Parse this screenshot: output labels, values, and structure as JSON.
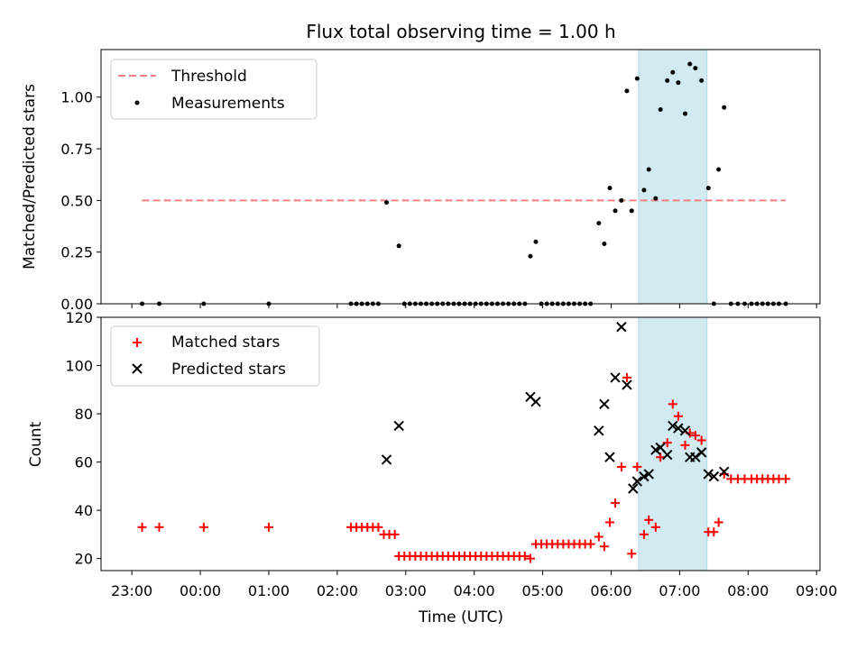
{
  "figure": {
    "title": "Flux total observing time = 1.00 h",
    "shaded_span_colour": "#add8e6",
    "x_tick_labels": [
      "23:00",
      "00:00",
      "01:00",
      "02:00",
      "03:00",
      "04:00",
      "05:00",
      "06:00",
      "07:00",
      "08:00",
      "09:00"
    ]
  },
  "chart_data": [
    {
      "type": "scatter",
      "title": "Flux total observing time = 1.00 h",
      "xlabel": "",
      "ylabel": "Matched/Predicted stars",
      "x_unit": "hours relative to 00:00 UTC",
      "xlim": [
        -1.45,
        9.05
      ],
      "ylim": [
        0,
        1.23
      ],
      "yticks": [
        0.0,
        0.25,
        0.5,
        0.75,
        1.0
      ],
      "ytick_labels": [
        "0.00",
        "0.25",
        "0.50",
        "0.75",
        "1.00"
      ],
      "shaded_span": [
        6.4,
        7.4
      ],
      "threshold": {
        "name": "Threshold",
        "y": 0.5,
        "x_range": [
          -0.85,
          8.55
        ],
        "color": "#f08080",
        "style": "dashed"
      },
      "series": [
        {
          "name": "Measurements",
          "marker": "dot",
          "color": "#000000",
          "points": [
            [
              -0.85,
              0
            ],
            [
              -0.6,
              0
            ],
            [
              0.05,
              0
            ],
            [
              1.0,
              0
            ],
            [
              2.2,
              0
            ],
            [
              2.28,
              0
            ],
            [
              2.36,
              0
            ],
            [
              2.44,
              0
            ],
            [
              2.52,
              0
            ],
            [
              2.6,
              0
            ],
            [
              2.72,
              0.49
            ],
            [
              2.9,
              0.28
            ],
            [
              2.98,
              0
            ],
            [
              3.06,
              0
            ],
            [
              3.14,
              0
            ],
            [
              3.22,
              0
            ],
            [
              3.3,
              0
            ],
            [
              3.38,
              0
            ],
            [
              3.46,
              0
            ],
            [
              3.54,
              0
            ],
            [
              3.62,
              0
            ],
            [
              3.7,
              0
            ],
            [
              3.78,
              0
            ],
            [
              3.86,
              0
            ],
            [
              3.94,
              0
            ],
            [
              4.02,
              0
            ],
            [
              4.1,
              0
            ],
            [
              4.18,
              0
            ],
            [
              4.26,
              0
            ],
            [
              4.34,
              0
            ],
            [
              4.42,
              0
            ],
            [
              4.5,
              0
            ],
            [
              4.58,
              0
            ],
            [
              4.66,
              0
            ],
            [
              4.74,
              0
            ],
            [
              4.82,
              0.23
            ],
            [
              4.9,
              0.3
            ],
            [
              4.98,
              0
            ],
            [
              5.06,
              0
            ],
            [
              5.14,
              0
            ],
            [
              5.22,
              0
            ],
            [
              5.3,
              0
            ],
            [
              5.38,
              0
            ],
            [
              5.46,
              0
            ],
            [
              5.54,
              0
            ],
            [
              5.62,
              0
            ],
            [
              5.7,
              0
            ],
            [
              5.82,
              0.39
            ],
            [
              5.9,
              0.29
            ],
            [
              5.98,
              0.56
            ],
            [
              6.06,
              0.45
            ],
            [
              6.15,
              0.5
            ],
            [
              6.23,
              1.03
            ],
            [
              6.3,
              0.45
            ],
            [
              6.38,
              1.09
            ],
            [
              6.48,
              0.55
            ],
            [
              6.55,
              0.65
            ],
            [
              6.65,
              0.51
            ],
            [
              6.72,
              0.94
            ],
            [
              6.82,
              1.08
            ],
            [
              6.9,
              1.12
            ],
            [
              6.98,
              1.07
            ],
            [
              7.08,
              0.92
            ],
            [
              7.15,
              1.16
            ],
            [
              7.23,
              1.14
            ],
            [
              7.32,
              1.08
            ],
            [
              7.42,
              0.56
            ],
            [
              7.5,
              0
            ],
            [
              7.57,
              0.65
            ],
            [
              7.65,
              0.95
            ],
            [
              7.75,
              0
            ],
            [
              7.85,
              0
            ],
            [
              7.95,
              0
            ],
            [
              8.05,
              0
            ],
            [
              8.13,
              0
            ],
            [
              8.21,
              0
            ],
            [
              8.29,
              0
            ],
            [
              8.37,
              0
            ],
            [
              8.45,
              0
            ],
            [
              8.55,
              0
            ]
          ]
        }
      ],
      "legend": {
        "position": "upper-left",
        "entries": [
          "Threshold",
          "Measurements"
        ]
      }
    },
    {
      "type": "scatter",
      "xlabel": "Time (UTC)",
      "ylabel": "Count",
      "x_unit": "hours relative to 00:00 UTC",
      "xlim": [
        -1.45,
        9.05
      ],
      "ylim": [
        15,
        120
      ],
      "yticks": [
        20,
        40,
        60,
        80,
        100,
        120
      ],
      "ytick_labels": [
        "20",
        "40",
        "60",
        "80",
        "100",
        "120"
      ],
      "shaded_span": [
        6.4,
        7.4
      ],
      "series": [
        {
          "name": "Matched stars",
          "marker": "plus",
          "color": "#ff0000",
          "points": [
            [
              -0.85,
              33
            ],
            [
              -0.6,
              33
            ],
            [
              0.05,
              33
            ],
            [
              1.0,
              33
            ],
            [
              2.2,
              33
            ],
            [
              2.28,
              33
            ],
            [
              2.36,
              33
            ],
            [
              2.44,
              33
            ],
            [
              2.52,
              33
            ],
            [
              2.6,
              33
            ],
            [
              2.68,
              30
            ],
            [
              2.76,
              30
            ],
            [
              2.84,
              30
            ],
            [
              2.9,
              21
            ],
            [
              2.98,
              21
            ],
            [
              3.06,
              21
            ],
            [
              3.14,
              21
            ],
            [
              3.22,
              21
            ],
            [
              3.3,
              21
            ],
            [
              3.38,
              21
            ],
            [
              3.46,
              21
            ],
            [
              3.54,
              21
            ],
            [
              3.62,
              21
            ],
            [
              3.7,
              21
            ],
            [
              3.78,
              21
            ],
            [
              3.86,
              21
            ],
            [
              3.94,
              21
            ],
            [
              4.02,
              21
            ],
            [
              4.1,
              21
            ],
            [
              4.18,
              21
            ],
            [
              4.26,
              21
            ],
            [
              4.34,
              21
            ],
            [
              4.42,
              21
            ],
            [
              4.5,
              21
            ],
            [
              4.58,
              21
            ],
            [
              4.66,
              21
            ],
            [
              4.74,
              21
            ],
            [
              4.82,
              20
            ],
            [
              4.9,
              26
            ],
            [
              4.98,
              26
            ],
            [
              5.06,
              26
            ],
            [
              5.14,
              26
            ],
            [
              5.22,
              26
            ],
            [
              5.3,
              26
            ],
            [
              5.38,
              26
            ],
            [
              5.46,
              26
            ],
            [
              5.54,
              26
            ],
            [
              5.62,
              26
            ],
            [
              5.7,
              26
            ],
            [
              5.82,
              29
            ],
            [
              5.9,
              25
            ],
            [
              5.98,
              35
            ],
            [
              6.06,
              43
            ],
            [
              6.15,
              58
            ],
            [
              6.23,
              95
            ],
            [
              6.3,
              22
            ],
            [
              6.38,
              58
            ],
            [
              6.48,
              30
            ],
            [
              6.55,
              36
            ],
            [
              6.65,
              33
            ],
            [
              6.72,
              62
            ],
            [
              6.82,
              68
            ],
            [
              6.9,
              84
            ],
            [
              6.98,
              79
            ],
            [
              7.08,
              67
            ],
            [
              7.15,
              72
            ],
            [
              7.23,
              71
            ],
            [
              7.32,
              69
            ],
            [
              7.42,
              31
            ],
            [
              7.5,
              31
            ],
            [
              7.57,
              35
            ],
            [
              7.65,
              55
            ],
            [
              7.75,
              53
            ],
            [
              7.85,
              53
            ],
            [
              7.95,
              53
            ],
            [
              8.05,
              53
            ],
            [
              8.13,
              53
            ],
            [
              8.21,
              53
            ],
            [
              8.29,
              53
            ],
            [
              8.37,
              53
            ],
            [
              8.45,
              53
            ],
            [
              8.55,
              53
            ]
          ]
        },
        {
          "name": "Predicted stars",
          "marker": "x",
          "color": "#000000",
          "points": [
            [
              2.72,
              61
            ],
            [
              2.9,
              75
            ],
            [
              4.82,
              87
            ],
            [
              4.9,
              85
            ],
            [
              5.82,
              73
            ],
            [
              5.9,
              84
            ],
            [
              5.98,
              62
            ],
            [
              6.06,
              95
            ],
            [
              6.15,
              116
            ],
            [
              6.23,
              92
            ],
            [
              6.32,
              49
            ],
            [
              6.38,
              52
            ],
            [
              6.48,
              54
            ],
            [
              6.55,
              55
            ],
            [
              6.65,
              65
            ],
            [
              6.72,
              66
            ],
            [
              6.82,
              63
            ],
            [
              6.9,
              75
            ],
            [
              6.98,
              74
            ],
            [
              7.08,
              73
            ],
            [
              7.15,
              62
            ],
            [
              7.23,
              62
            ],
            [
              7.32,
              64
            ],
            [
              7.42,
              55
            ],
            [
              7.5,
              54
            ],
            [
              7.65,
              56
            ]
          ]
        }
      ],
      "legend": {
        "position": "upper-left",
        "entries": [
          "Matched stars",
          "Predicted stars"
        ]
      }
    }
  ]
}
